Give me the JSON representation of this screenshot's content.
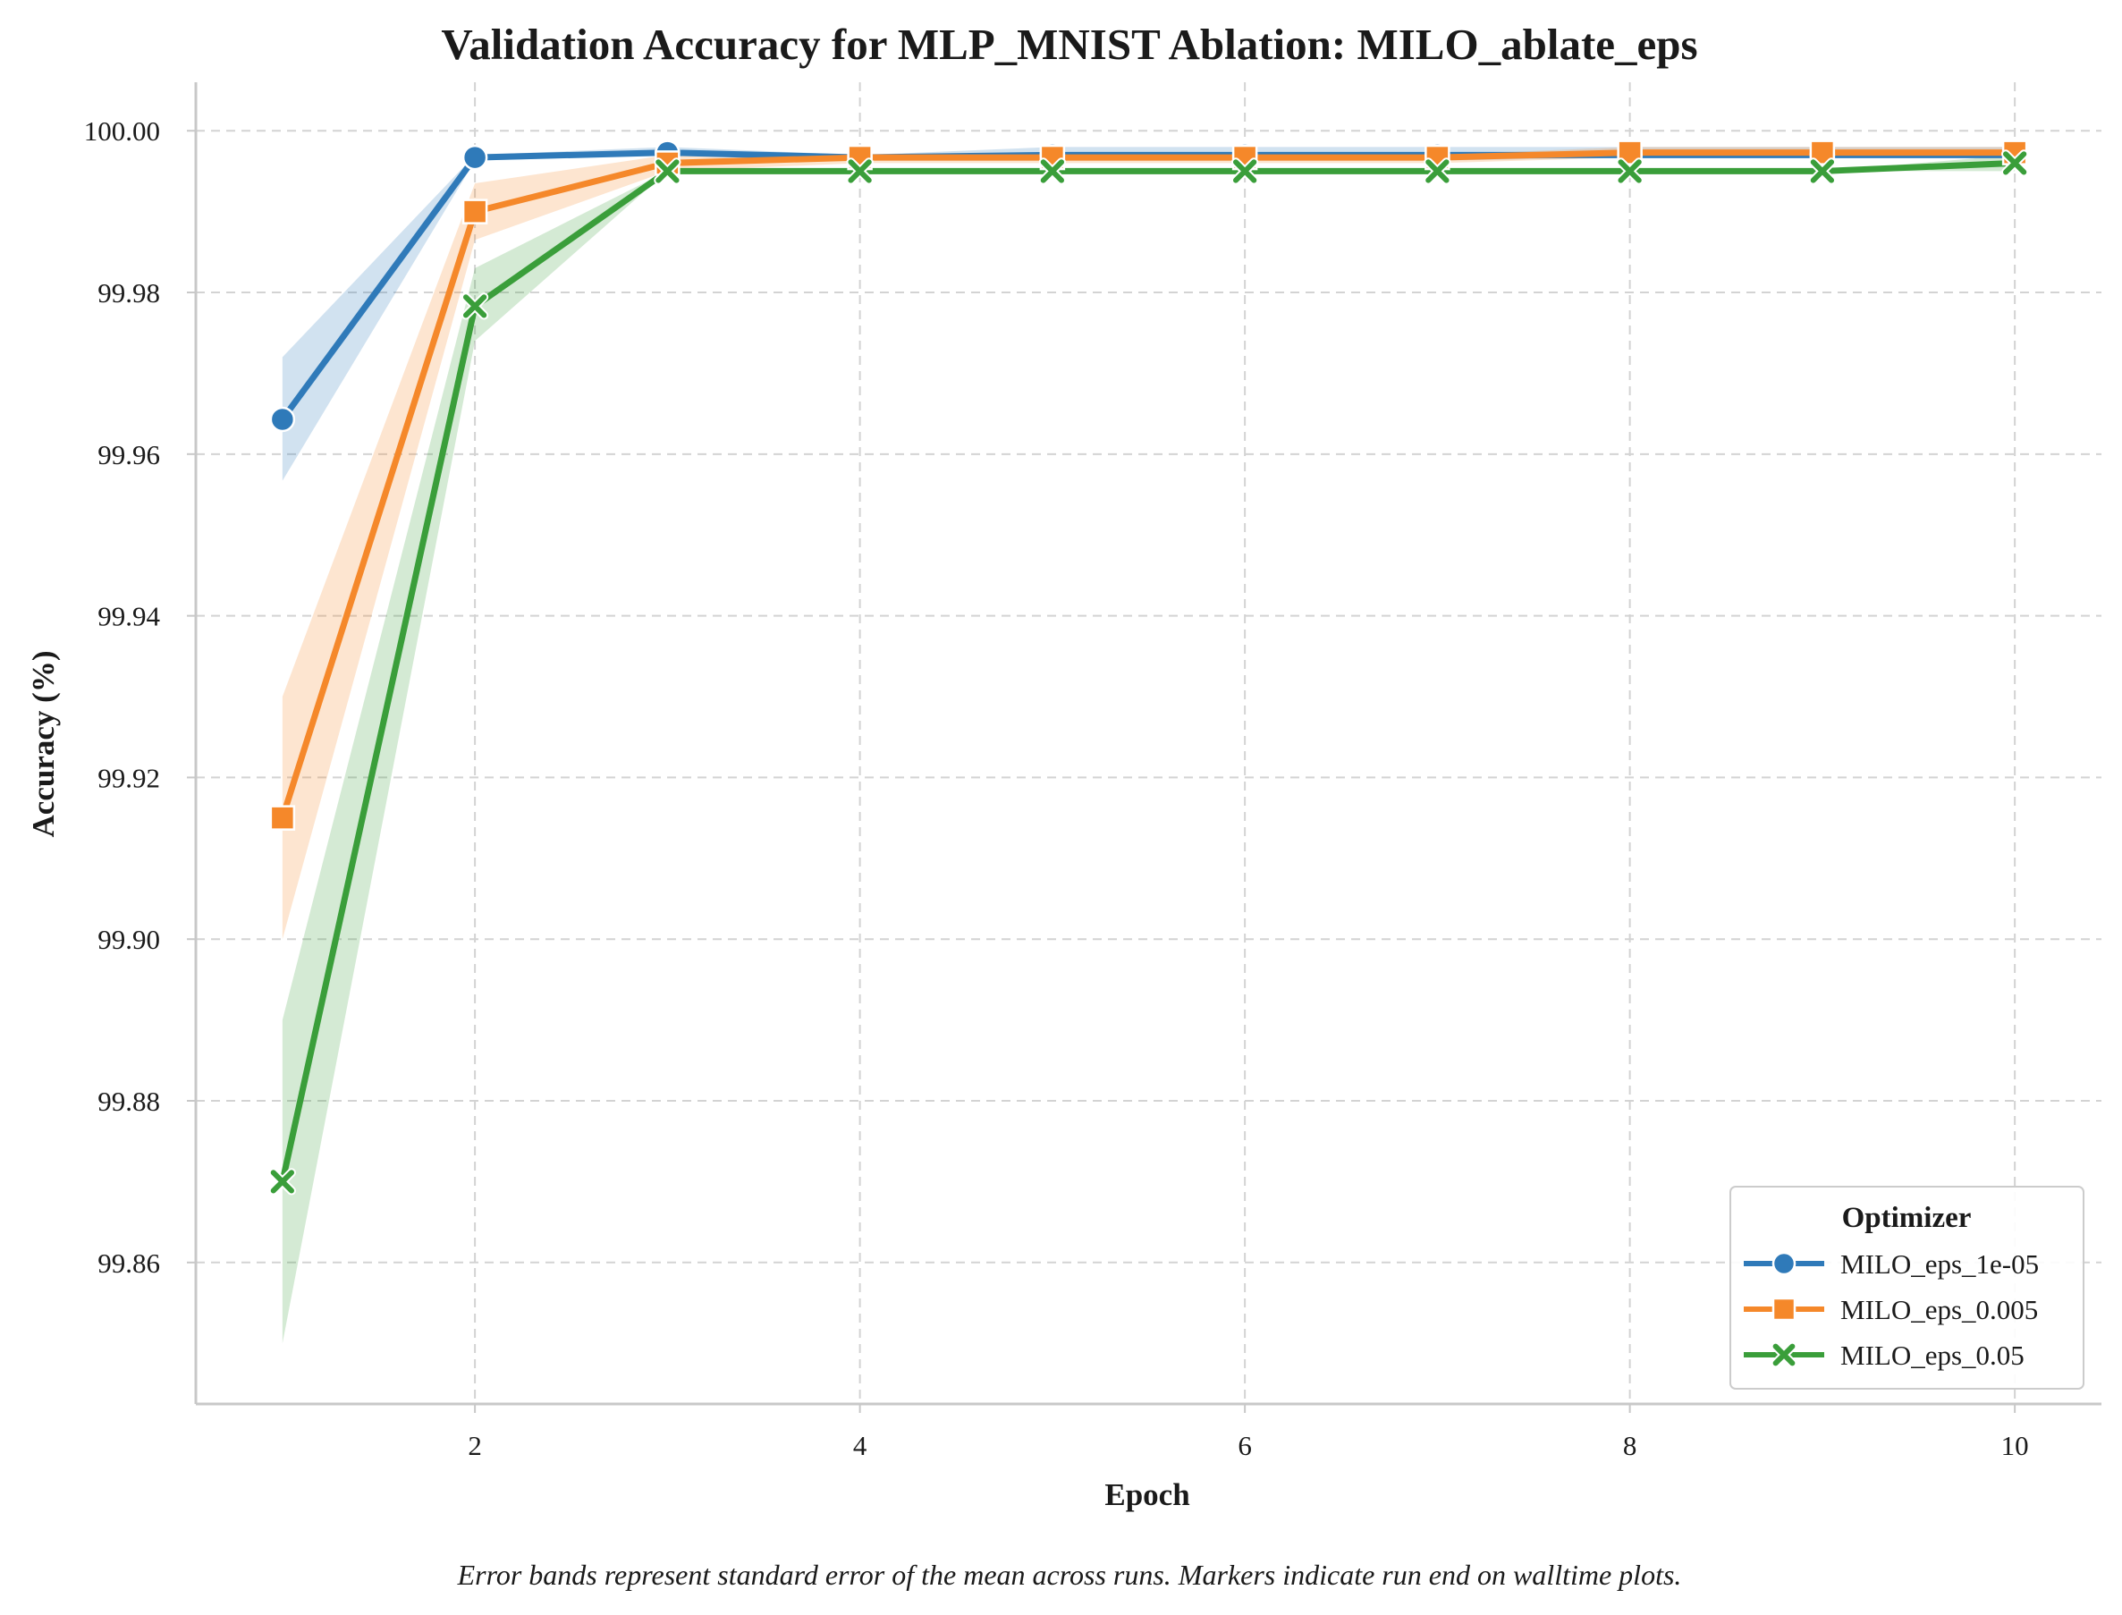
{
  "chart_data": {
    "type": "line",
    "title": "Validation Accuracy for MLP_MNIST Ablation: MILO_ablate_eps",
    "xlabel": "Epoch",
    "ylabel": "Accuracy (%)",
    "xlim": [
      0.55,
      10.45
    ],
    "ylim": [
      99.8425,
      100.006
    ],
    "xticks": [
      2,
      4,
      6,
      8,
      10
    ],
    "xtick_labels": [
      "2",
      "4",
      "6",
      "8",
      "10"
    ],
    "yticks": [
      99.86,
      99.88,
      99.9,
      99.92,
      99.94,
      99.96,
      99.98,
      100.0
    ],
    "ytick_labels": [
      "99.86",
      "99.88",
      "99.90",
      "99.92",
      "99.94",
      "99.96",
      "99.98",
      "100.00"
    ],
    "grid": true,
    "legend": {
      "title": "Optimizer",
      "position": "lower-right"
    },
    "x": [
      1,
      2,
      3,
      4,
      5,
      6,
      7,
      8,
      9,
      10
    ],
    "series": [
      {
        "name": "MILO_eps_1e-05",
        "color": "#2f7ab9",
        "marker": "circle",
        "values": [
          99.9643,
          99.9967,
          99.9973,
          99.9967,
          99.997,
          99.997,
          99.997,
          99.997,
          99.997,
          99.997
        ],
        "lower": [
          99.9567,
          99.9963,
          99.997,
          99.9963,
          99.9963,
          99.9963,
          99.9963,
          99.9967,
          99.9967,
          99.9967
        ],
        "upper": [
          99.972,
          99.997,
          99.998,
          99.997,
          99.998,
          99.998,
          99.998,
          99.998,
          99.998,
          99.998
        ]
      },
      {
        "name": "MILO_eps_0.005",
        "color": "#f5882a",
        "marker": "square",
        "values": [
          99.915,
          99.99,
          99.996,
          99.9967,
          99.9967,
          99.9967,
          99.9967,
          99.9973,
          99.9973,
          99.9973
        ],
        "lower": [
          99.9,
          99.9865,
          99.995,
          99.996,
          99.996,
          99.996,
          99.996,
          99.9967,
          99.9967,
          99.9967
        ],
        "upper": [
          99.93,
          99.9935,
          99.997,
          99.997,
          99.997,
          99.997,
          99.997,
          99.998,
          99.998,
          99.998
        ]
      },
      {
        "name": "MILO_eps_0.05",
        "color": "#3a9e3a",
        "marker": "x",
        "values": [
          99.87,
          99.9783,
          99.995,
          99.995,
          99.995,
          99.995,
          99.995,
          99.995,
          99.995,
          99.996
        ],
        "lower": [
          99.85,
          99.974,
          99.995,
          99.995,
          99.995,
          99.995,
          99.995,
          99.995,
          99.995,
          99.995
        ],
        "upper": [
          99.89,
          99.983,
          99.995,
          99.995,
          99.995,
          99.995,
          99.995,
          99.995,
          99.995,
          99.997
        ]
      }
    ],
    "caption": "Error bands represent standard error of the mean across runs. Markers indicate run end on walltime plots."
  }
}
